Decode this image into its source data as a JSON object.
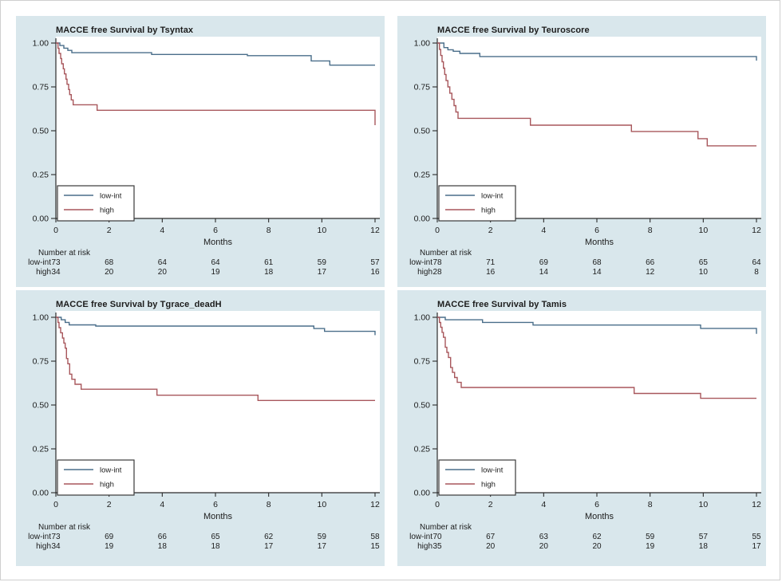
{
  "page": {
    "background": "#ffffff"
  },
  "colors": {
    "panel_bg": "#d9e7ec",
    "plot_bg": "#ffffff",
    "axis": "#2b2b2b",
    "text": "#1c1c1c",
    "legend_border": "#3a3a3a",
    "low_int": "#4a6e8a",
    "high": "#a8575c"
  },
  "chart_data": [
    {
      "type": "line",
      "subtype": "kaplan-meier-step",
      "title": "MACCE free Survival by Tsyntax",
      "xlabel": "Months",
      "ylabel": "",
      "xlim": [
        0,
        12
      ],
      "ylim": [
        0,
        1.0
      ],
      "xticks": [
        0,
        2,
        4,
        6,
        8,
        10,
        12
      ],
      "yticks": [
        "0.00",
        "0.25",
        "0.50",
        "0.75",
        "1.00"
      ],
      "grid": false,
      "legend": {
        "position": "bottom-left",
        "entries": [
          "low-int",
          "high"
        ]
      },
      "series": [
        {
          "name": "low-int",
          "color": "#4a6e8a",
          "steps": [
            [
              0,
              1.0
            ],
            [
              0.15,
              0.986
            ],
            [
              0.3,
              0.971
            ],
            [
              0.45,
              0.958
            ],
            [
              0.6,
              0.945
            ],
            [
              3.6,
              0.935
            ],
            [
              7.2,
              0.928
            ],
            [
              9.6,
              0.898
            ],
            [
              10.3,
              0.874
            ]
          ]
        },
        {
          "name": "high",
          "color": "#a8575c",
          "steps": [
            [
              0,
              1.0
            ],
            [
              0.08,
              0.97
            ],
            [
              0.12,
              0.941
            ],
            [
              0.18,
              0.912
            ],
            [
              0.22,
              0.882
            ],
            [
              0.28,
              0.853
            ],
            [
              0.32,
              0.824
            ],
            [
              0.38,
              0.794
            ],
            [
              0.42,
              0.765
            ],
            [
              0.48,
              0.735
            ],
            [
              0.52,
              0.706
            ],
            [
              0.58,
              0.676
            ],
            [
              0.65,
              0.648
            ],
            [
              1.55,
              0.617
            ],
            [
              12,
              0.532
            ]
          ]
        }
      ],
      "risk_table": {
        "label": "Number at risk",
        "times": [
          0,
          2,
          4,
          6,
          8,
          10,
          12
        ],
        "rows": [
          {
            "name": "low-int",
            "values": [
              73,
              68,
              64,
              64,
              61,
              59,
              57
            ]
          },
          {
            "name": "high",
            "values": [
              34,
              20,
              20,
              19,
              18,
              17,
              16
            ]
          }
        ]
      }
    },
    {
      "type": "line",
      "subtype": "kaplan-meier-step",
      "title": "MACCE free Survival by Teuroscore",
      "xlabel": "Months",
      "ylabel": "",
      "xlim": [
        0,
        12
      ],
      "ylim": [
        0,
        1.0
      ],
      "xticks": [
        0,
        2,
        4,
        6,
        8,
        10,
        12
      ],
      "yticks": [
        "0.00",
        "0.25",
        "0.50",
        "0.75",
        "1.00"
      ],
      "grid": false,
      "legend": {
        "position": "bottom-left",
        "entries": [
          "low-int",
          "high"
        ]
      },
      "series": [
        {
          "name": "low-int",
          "color": "#4a6e8a",
          "steps": [
            [
              0,
              1.0
            ],
            [
              0.25,
              0.974
            ],
            [
              0.4,
              0.962
            ],
            [
              0.6,
              0.953
            ],
            [
              0.85,
              0.941
            ],
            [
              1.6,
              0.923
            ],
            [
              12,
              0.9
            ]
          ]
        },
        {
          "name": "high",
          "color": "#a8575c",
          "steps": [
            [
              0,
              1.0
            ],
            [
              0.08,
              0.964
            ],
            [
              0.13,
              0.929
            ],
            [
              0.18,
              0.893
            ],
            [
              0.23,
              0.857
            ],
            [
              0.28,
              0.821
            ],
            [
              0.33,
              0.786
            ],
            [
              0.4,
              0.75
            ],
            [
              0.47,
              0.714
            ],
            [
              0.55,
              0.679
            ],
            [
              0.63,
              0.643
            ],
            [
              0.7,
              0.607
            ],
            [
              0.78,
              0.571
            ],
            [
              3.5,
              0.532
            ],
            [
              7.3,
              0.496
            ],
            [
              9.8,
              0.455
            ],
            [
              10.15,
              0.414
            ]
          ]
        }
      ],
      "risk_table": {
        "label": "Number at risk",
        "times": [
          0,
          2,
          4,
          6,
          8,
          10,
          12
        ],
        "rows": [
          {
            "name": "low-int",
            "values": [
              78,
              71,
              69,
              68,
              66,
              65,
              64
            ]
          },
          {
            "name": "high",
            "values": [
              28,
              16,
              14,
              14,
              12,
              10,
              8
            ]
          }
        ]
      }
    },
    {
      "type": "line",
      "subtype": "kaplan-meier-step",
      "title": "MACCE free Survival by Tgrace_deadH",
      "xlabel": "Months",
      "ylabel": "",
      "xlim": [
        0,
        12
      ],
      "ylim": [
        0,
        1.0
      ],
      "xticks": [
        0,
        2,
        4,
        6,
        8,
        10,
        12
      ],
      "yticks": [
        "0.00",
        "0.25",
        "0.50",
        "0.75",
        "1.00"
      ],
      "grid": false,
      "legend": {
        "position": "bottom-left",
        "entries": [
          "low-int",
          "high"
        ]
      },
      "series": [
        {
          "name": "low-int",
          "color": "#4a6e8a",
          "steps": [
            [
              0,
              1.0
            ],
            [
              0.2,
              0.986
            ],
            [
              0.35,
              0.971
            ],
            [
              0.5,
              0.957
            ],
            [
              1.5,
              0.95
            ],
            [
              9.7,
              0.936
            ],
            [
              10.1,
              0.92
            ],
            [
              12,
              0.898
            ]
          ]
        },
        {
          "name": "high",
          "color": "#a8575c",
          "steps": [
            [
              0,
              1.0
            ],
            [
              0.08,
              0.971
            ],
            [
              0.12,
              0.941
            ],
            [
              0.18,
              0.912
            ],
            [
              0.25,
              0.882
            ],
            [
              0.3,
              0.853
            ],
            [
              0.35,
              0.824
            ],
            [
              0.4,
              0.765
            ],
            [
              0.45,
              0.735
            ],
            [
              0.52,
              0.676
            ],
            [
              0.6,
              0.647
            ],
            [
              0.72,
              0.618
            ],
            [
              0.95,
              0.59
            ],
            [
              3.8,
              0.556
            ],
            [
              7.6,
              0.526
            ]
          ]
        }
      ],
      "risk_table": {
        "label": "Number at risk",
        "times": [
          0,
          2,
          4,
          6,
          8,
          10,
          12
        ],
        "rows": [
          {
            "name": "low-int",
            "values": [
              73,
              69,
              66,
              65,
              62,
              59,
              58
            ]
          },
          {
            "name": "high",
            "values": [
              34,
              19,
              18,
              18,
              17,
              17,
              15
            ]
          }
        ]
      }
    },
    {
      "type": "line",
      "subtype": "kaplan-meier-step",
      "title": "MACCE free Survival by Tamis",
      "xlabel": "Months",
      "ylabel": "",
      "xlim": [
        0,
        12
      ],
      "ylim": [
        0,
        1.0
      ],
      "xticks": [
        0,
        2,
        4,
        6,
        8,
        10,
        12
      ],
      "yticks": [
        "0.00",
        "0.25",
        "0.50",
        "0.75",
        "1.00"
      ],
      "grid": false,
      "legend": {
        "position": "bottom-left",
        "entries": [
          "low-int",
          "high"
        ]
      },
      "series": [
        {
          "name": "low-int",
          "color": "#4a6e8a",
          "steps": [
            [
              0,
              1.0
            ],
            [
              0.3,
              0.986
            ],
            [
              1.7,
              0.971
            ],
            [
              3.6,
              0.956
            ],
            [
              9.9,
              0.937
            ],
            [
              12,
              0.906
            ]
          ]
        },
        {
          "name": "high",
          "color": "#a8575c",
          "steps": [
            [
              0,
              1.0
            ],
            [
              0.08,
              0.971
            ],
            [
              0.13,
              0.943
            ],
            [
              0.18,
              0.914
            ],
            [
              0.23,
              0.886
            ],
            [
              0.3,
              0.829
            ],
            [
              0.36,
              0.8
            ],
            [
              0.42,
              0.771
            ],
            [
              0.5,
              0.714
            ],
            [
              0.57,
              0.686
            ],
            [
              0.65,
              0.657
            ],
            [
              0.75,
              0.629
            ],
            [
              0.9,
              0.6
            ],
            [
              7.4,
              0.566
            ],
            [
              9.9,
              0.538
            ]
          ]
        }
      ],
      "risk_table": {
        "label": "Number at risk",
        "times": [
          0,
          2,
          4,
          6,
          8,
          10,
          12
        ],
        "rows": [
          {
            "name": "low-int",
            "values": [
              70,
              67,
              63,
              62,
              59,
              57,
              55
            ]
          },
          {
            "name": "high",
            "values": [
              35,
              20,
              20,
              20,
              19,
              18,
              17
            ]
          }
        ]
      }
    }
  ]
}
